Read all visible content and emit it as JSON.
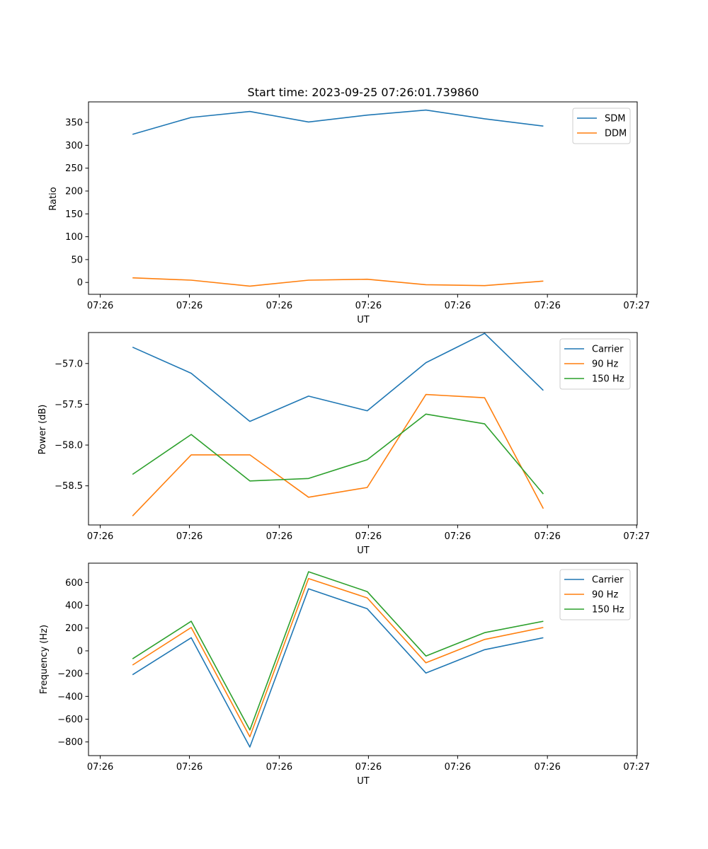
{
  "chart_data": [
    {
      "type": "line",
      "title": "Start time: 2023-09-25 07:26:01.739860",
      "xlabel": "UT",
      "ylabel": "Ratio",
      "x": [
        1,
        2,
        3,
        4,
        5,
        6,
        7,
        8
      ],
      "xlim": [
        0.25,
        9.6
      ],
      "x_ticks": [
        0.45,
        1.97,
        3.5,
        5.02,
        6.54,
        8.07,
        9.59
      ],
      "x_tick_labels": [
        "07:26",
        "07:26",
        "07:26",
        "07:26",
        "07:26",
        "07:26",
        "07:27"
      ],
      "ylim": [
        -26,
        395
      ],
      "y_ticks": [
        0,
        50,
        100,
        150,
        200,
        250,
        300,
        350
      ],
      "y_tick_labels": [
        "0",
        "50",
        "100",
        "150",
        "200",
        "250",
        "300",
        "350"
      ],
      "legend_position": "top-right",
      "series": [
        {
          "name": "SDM",
          "color": "#1f77b4",
          "values": [
            324,
            361,
            374,
            351,
            366,
            377,
            358,
            342
          ]
        },
        {
          "name": "DDM",
          "color": "#ff7f0e",
          "values": [
            10,
            5,
            -8,
            5,
            7,
            -5,
            -7,
            3
          ]
        }
      ]
    },
    {
      "type": "line",
      "title": "",
      "xlabel": "UT",
      "ylabel": "Power (dB)",
      "x": [
        1,
        2,
        3,
        4,
        5,
        6,
        7,
        8
      ],
      "xlim": [
        0.25,
        9.6
      ],
      "x_ticks": [
        0.45,
        1.97,
        3.5,
        5.02,
        6.54,
        8.07,
        9.59
      ],
      "x_tick_labels": [
        "07:26",
        "07:26",
        "07:26",
        "07:26",
        "07:26",
        "07:26",
        "07:27"
      ],
      "ylim": [
        -58.98,
        -56.62
      ],
      "y_ticks": [
        -57.0,
        -57.5,
        -58.0,
        -58.5
      ],
      "y_tick_labels": [
        "−57.0",
        "−57.5",
        "−58.0",
        "−58.5"
      ],
      "legend_position": "top-right",
      "series": [
        {
          "name": "Carrier",
          "color": "#1f77b4",
          "values": [
            -56.8,
            -57.12,
            -57.71,
            -57.4,
            -57.58,
            -56.99,
            -56.63,
            -57.33
          ]
        },
        {
          "name": "90 Hz",
          "color": "#ff7f0e",
          "values": [
            -58.87,
            -58.12,
            -58.12,
            -58.64,
            -58.52,
            -57.38,
            -57.42,
            -58.78
          ]
        },
        {
          "name": "150 Hz",
          "color": "#2ca02c",
          "values": [
            -58.36,
            -57.87,
            -58.44,
            -58.41,
            -58.18,
            -57.62,
            -57.74,
            -58.6
          ]
        }
      ]
    },
    {
      "type": "line",
      "title": "",
      "xlabel": "UT",
      "ylabel": "Frequency (Hz)",
      "x": [
        1,
        2,
        3,
        4,
        5,
        6,
        7,
        8
      ],
      "xlim": [
        0.25,
        9.6
      ],
      "x_ticks": [
        0.45,
        1.97,
        3.5,
        5.02,
        6.54,
        8.07,
        9.59
      ],
      "x_tick_labels": [
        "07:26",
        "07:26",
        "07:26",
        "07:26",
        "07:26",
        "07:26",
        "07:27"
      ],
      "ylim": [
        -920,
        770
      ],
      "y_ticks": [
        600,
        400,
        200,
        0,
        -200,
        -400,
        -600,
        -800
      ],
      "y_tick_labels": [
        "600",
        "400",
        "200",
        "0",
        "−200",
        "−400",
        "−600",
        "−800"
      ],
      "legend_position": "top-right",
      "series": [
        {
          "name": "Carrier",
          "color": "#1f77b4",
          "values": [
            -210,
            115,
            -845,
            545,
            370,
            -195,
            10,
            115
          ]
        },
        {
          "name": "90 Hz",
          "color": "#ff7f0e",
          "values": [
            -125,
            205,
            -755,
            635,
            465,
            -105,
            100,
            205
          ]
        },
        {
          "name": "150 Hz",
          "color": "#2ca02c",
          "values": [
            -70,
            260,
            -695,
            695,
            520,
            -45,
            160,
            260
          ]
        }
      ]
    }
  ]
}
